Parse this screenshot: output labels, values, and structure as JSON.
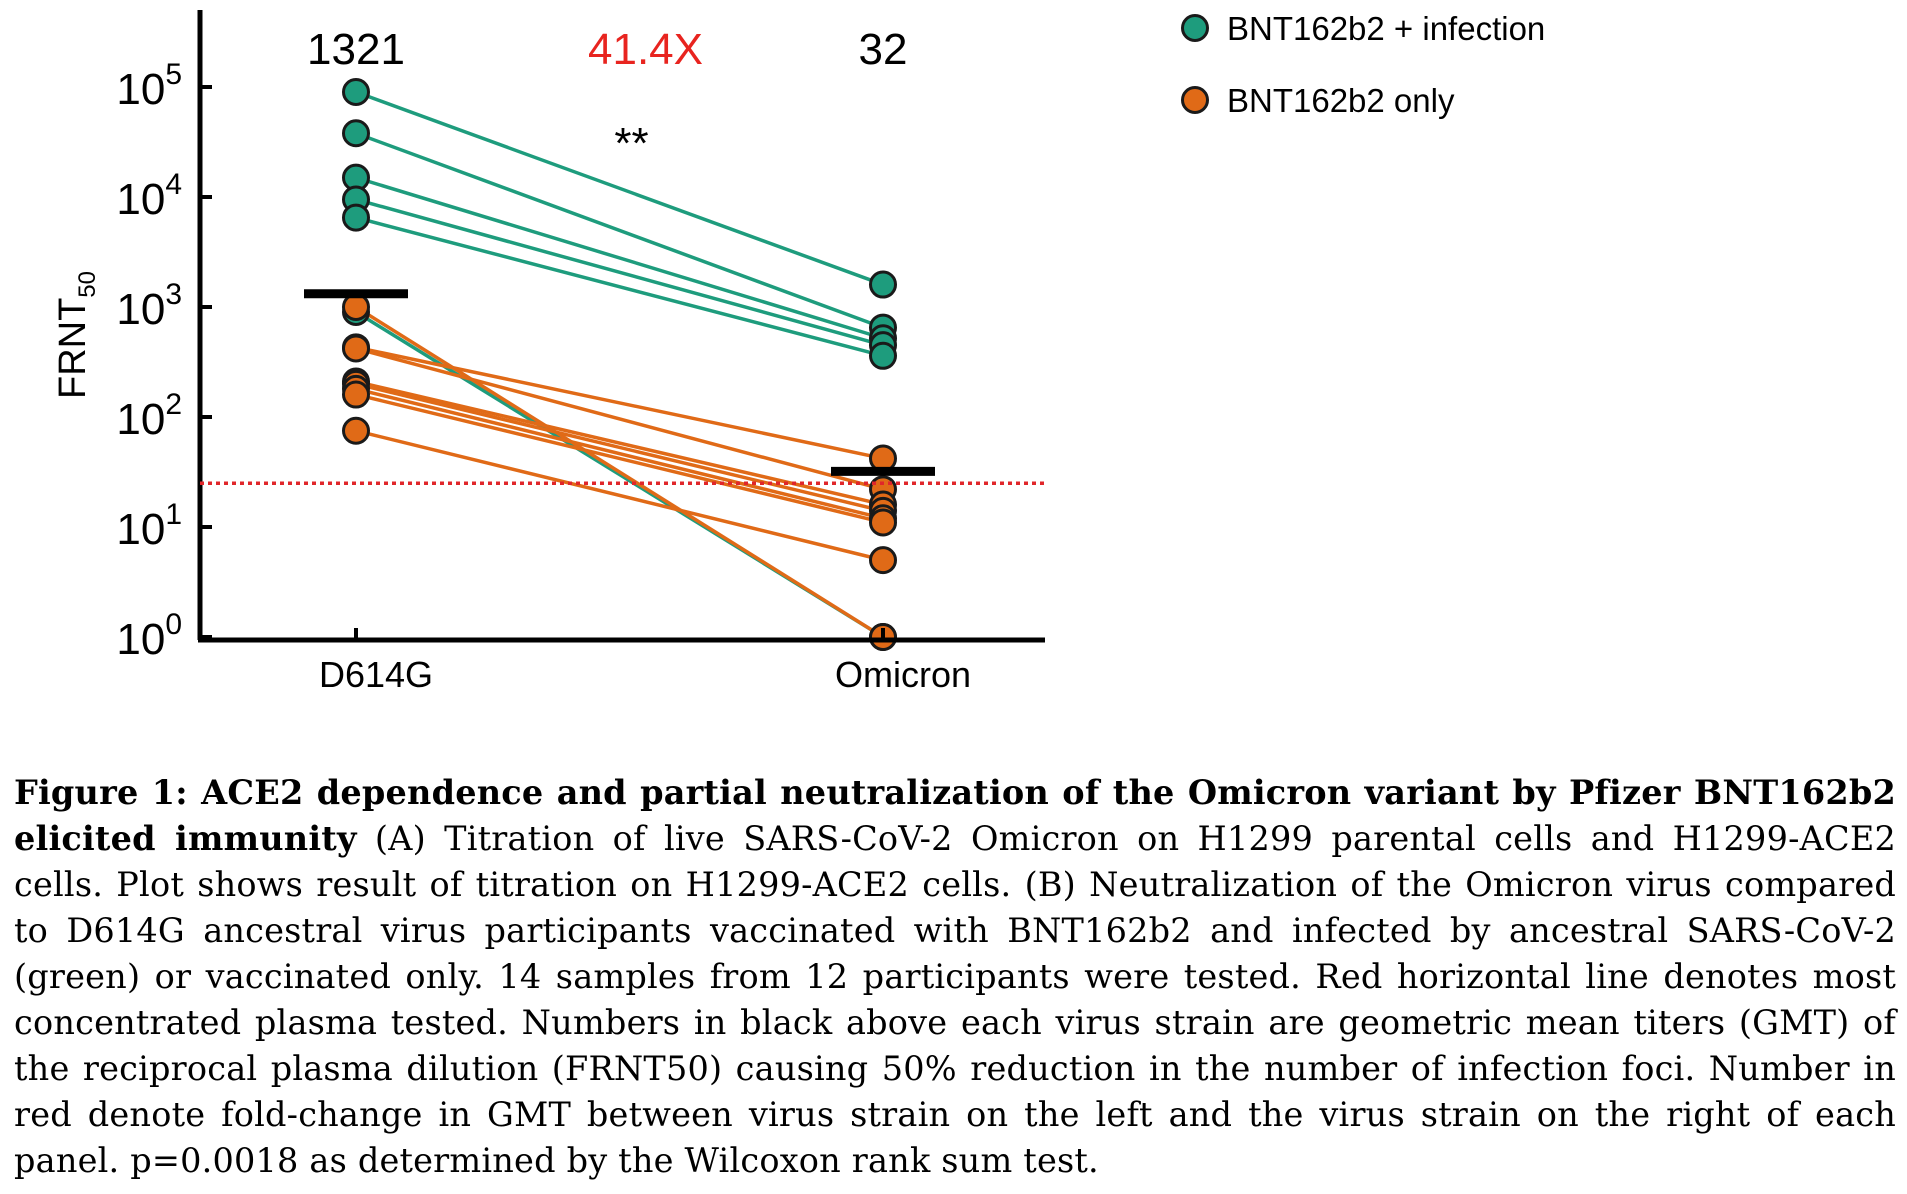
{
  "chart_data": {
    "type": "scatter",
    "ylabel": "FRNT",
    "ylabel_sub": "50",
    "y_scale": "log",
    "ylim": [
      1,
      300000
    ],
    "y_ticks": [
      {
        "base": "10",
        "exp": "0"
      },
      {
        "base": "10",
        "exp": "1"
      },
      {
        "base": "10",
        "exp": "2"
      },
      {
        "base": "10",
        "exp": "3"
      },
      {
        "base": "10",
        "exp": "4"
      },
      {
        "base": "10",
        "exp": "5"
      }
    ],
    "categories": [
      "D614G",
      "Omicron"
    ],
    "gmt_labels": [
      "1321",
      "32"
    ],
    "fold_change": "41.4X",
    "significance": "**",
    "gmt_values": [
      1321,
      32
    ],
    "detection_limit": 25,
    "legend_placement": "top-right",
    "series": [
      {
        "name": "BNT162b2 + infection",
        "color": "#1e9c7d",
        "pairs": [
          [
            90000,
            1600
          ],
          [
            38000,
            650
          ],
          [
            15000,
            520
          ],
          [
            9500,
            450
          ],
          [
            6500,
            360
          ],
          [
            900,
            1
          ]
        ]
      },
      {
        "name": "BNT162b2 only",
        "color": "#e06a17",
        "pairs": [
          [
            1000,
            1
          ],
          [
            430,
            42
          ],
          [
            420,
            22
          ],
          [
            210,
            16
          ],
          [
            200,
            14
          ],
          [
            180,
            12
          ],
          [
            160,
            11
          ],
          [
            75,
            5
          ]
        ]
      }
    ],
    "colors": {
      "mean_bar": "#000000",
      "limit_line": "#e0262a",
      "fold_change": "#e8241f"
    }
  },
  "caption": {
    "head": "Figure 1: ACE2 dependence and partial neutralization of the Omicron variant by Pfizer BNT162b2 elicited immunity",
    "body": " (A) Titration of live SARS-CoV-2 Omicron on H1299 parental cells and H1299-ACE2 cells. Plot shows result of titration on H1299-ACE2 cells. (B) Neutralization of the Omicron virus compared to D614G ancestral virus participants vaccinated with BNT162b2 and infected by ancestral SARS-CoV-2 (green) or vaccinated only. 14 samples from 12 participants were tested. Red horizontal line denotes most concentrated plasma tested. Numbers in black above each virus strain are geometric mean titers (GMT) of the reciprocal plasma dilution (FRNT50) causing 50% reduction in the number of infection foci. Number in red denote fold-change in GMT between virus strain on the left and the virus strain on the right of each panel. p=0.0018 as determined by the Wilcoxon rank sum test."
  }
}
